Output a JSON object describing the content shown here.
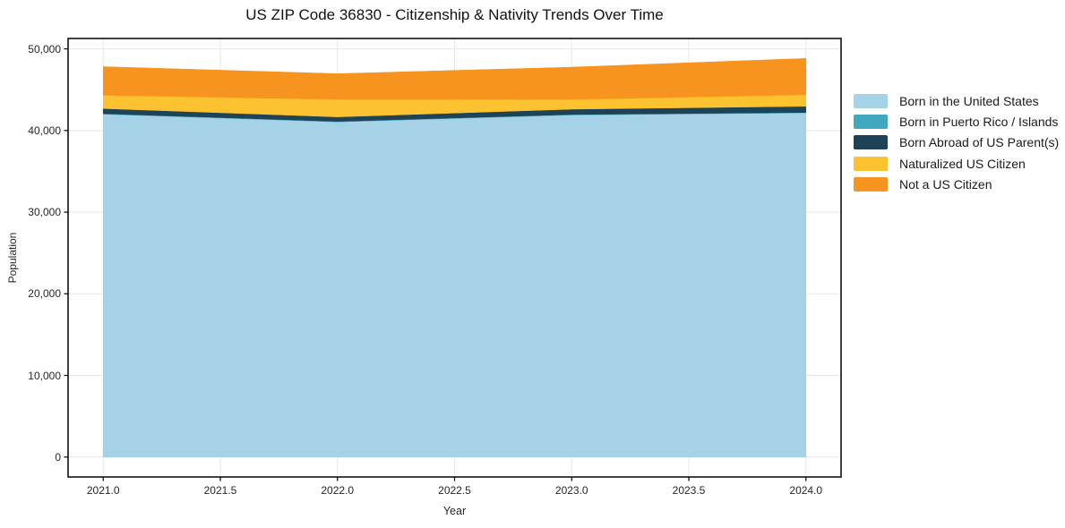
{
  "title": "US ZIP Code 36830 - Citizenship & Nativity Trends Over Time",
  "chart_data": {
    "type": "area",
    "stacked": true,
    "title": "US ZIP Code 36830 - Citizenship & Nativity Trends Over Time",
    "xlabel": "Year",
    "ylabel": "Population",
    "x": [
      2021,
      2022,
      2023,
      2024
    ],
    "series": [
      {
        "name": "Born in the United States",
        "color": "#a6d2e7",
        "values": [
          42000,
          41050,
          41900,
          42150
        ]
      },
      {
        "name": "Born in Puerto Rico / Islands",
        "color": "#41a8c0",
        "values": [
          60,
          60,
          60,
          60
        ]
      },
      {
        "name": "Born Abroad of US Parent(s)",
        "color": "#1e4356",
        "values": [
          630,
          550,
          650,
          750
        ]
      },
      {
        "name": "Naturalized US Citizen",
        "color": "#fcc22f",
        "values": [
          1630,
          2150,
          1200,
          1420
        ]
      },
      {
        "name": "Not a US Citizen",
        "color": "#f7941f",
        "values": [
          3500,
          3150,
          3950,
          4450
        ]
      }
    ],
    "xlim": [
      2020.85,
      2024.15
    ],
    "ylim": [
      -2440,
      51270
    ],
    "x_ticks": {
      "values": [
        2021.0,
        2021.5,
        2022.0,
        2022.5,
        2023.0,
        2023.5,
        2024.0
      ],
      "labels": [
        "2021.0",
        "2021.5",
        "2022.0",
        "2022.5",
        "2023.0",
        "2023.5",
        "2024.0"
      ]
    },
    "y_ticks": {
      "values": [
        0,
        10000,
        20000,
        30000,
        40000,
        50000
      ],
      "labels": [
        "0",
        "10,000",
        "20,000",
        "30,000",
        "40,000",
        "50,000"
      ]
    },
    "grid": true,
    "grid_color": "#e7e7e7",
    "spine_color": "#000000",
    "legend_position": "right"
  }
}
